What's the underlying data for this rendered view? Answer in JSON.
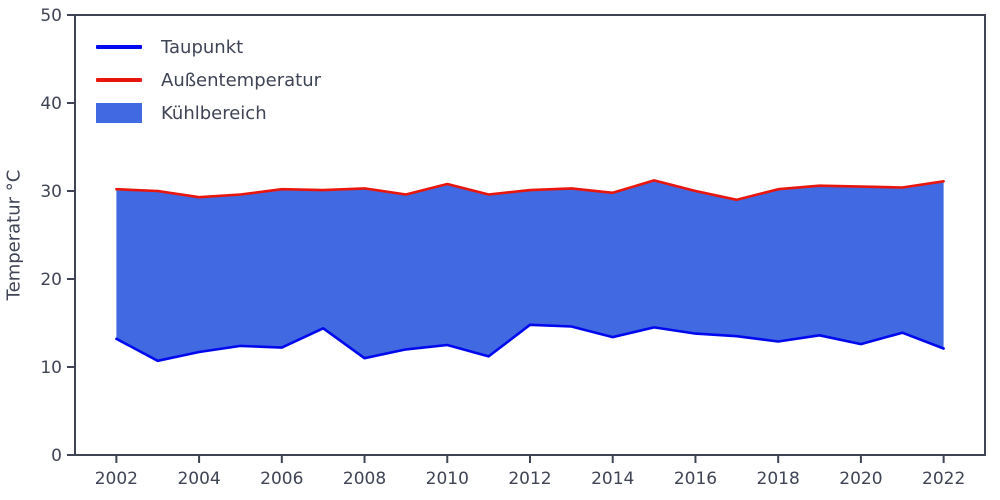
{
  "axis": {
    "color": "#3f4455",
    "ylabel": "Temperatur °C"
  },
  "chart_data": {
    "type": "area",
    "title": "",
    "xlabel": "",
    "ylabel": "Temperatur °C",
    "grid": false,
    "legend_position": "upper left",
    "xlim": [
      2001,
      2023
    ],
    "ylim": [
      0,
      50
    ],
    "xticks": [
      2002,
      2004,
      2006,
      2008,
      2010,
      2012,
      2014,
      2016,
      2018,
      2020,
      2022
    ],
    "yticks": [
      0,
      10,
      20,
      30,
      40,
      50
    ],
    "x": [
      2002,
      2003,
      2004,
      2005,
      2006,
      2007,
      2008,
      2009,
      2010,
      2011,
      2012,
      2013,
      2014,
      2015,
      2016,
      2017,
      2018,
      2019,
      2020,
      2021,
      2022
    ],
    "series": [
      {
        "name": "Taupunkt",
        "color": "#0008ee",
        "values": [
          13.2,
          10.7,
          11.7,
          12.4,
          12.2,
          14.4,
          11.0,
          12.0,
          12.5,
          11.2,
          14.8,
          14.6,
          13.4,
          14.5,
          13.8,
          13.5,
          12.9,
          13.6,
          12.6,
          13.9,
          12.1
        ]
      },
      {
        "name": "Außentemperatur",
        "color": "#e8160c",
        "values": [
          30.2,
          30.0,
          29.3,
          29.6,
          30.2,
          30.1,
          30.3,
          29.6,
          30.8,
          29.6,
          30.1,
          30.3,
          29.8,
          31.2,
          30.0,
          29.0,
          30.2,
          30.6,
          30.5,
          30.4,
          31.1
        ]
      }
    ],
    "fill": {
      "name": "Kühlbereich",
      "color": "#4169e1"
    }
  }
}
